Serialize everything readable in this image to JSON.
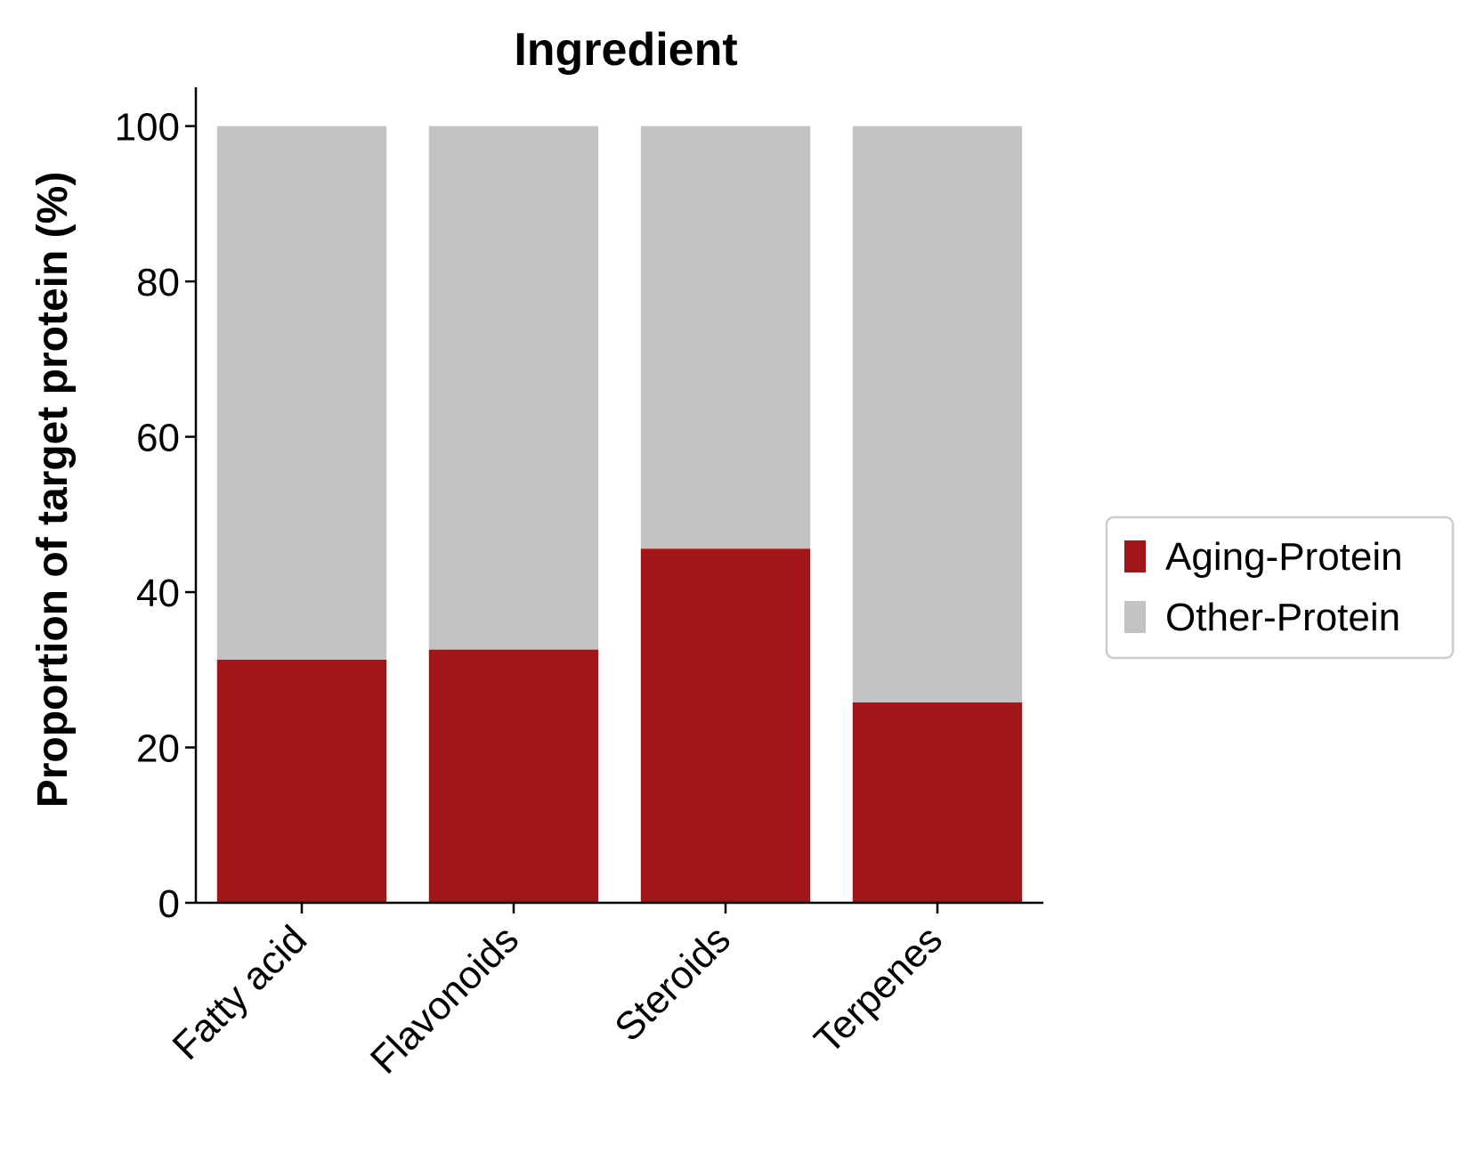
{
  "chart_data": {
    "type": "bar",
    "stacked": true,
    "title": "Ingredient",
    "xlabel": "",
    "ylabel": "Proportion of target protein (%)",
    "categories": [
      "Fatty acid",
      "Flavonoids",
      "Steroids",
      "Terpenes"
    ],
    "series": [
      {
        "name": "Aging-Protein",
        "color": "#a11618",
        "values": [
          31.3,
          32.6,
          45.6,
          25.8
        ]
      },
      {
        "name": "Other-Protein",
        "color": "#c3c3c3",
        "values": [
          68.7,
          67.4,
          54.4,
          74.2
        ]
      }
    ],
    "ylim": [
      0,
      105
    ],
    "yticks": [
      0,
      20,
      40,
      60,
      80,
      100
    ],
    "grid": false,
    "legend_position": "right",
    "x_tick_rotation": -45
  }
}
